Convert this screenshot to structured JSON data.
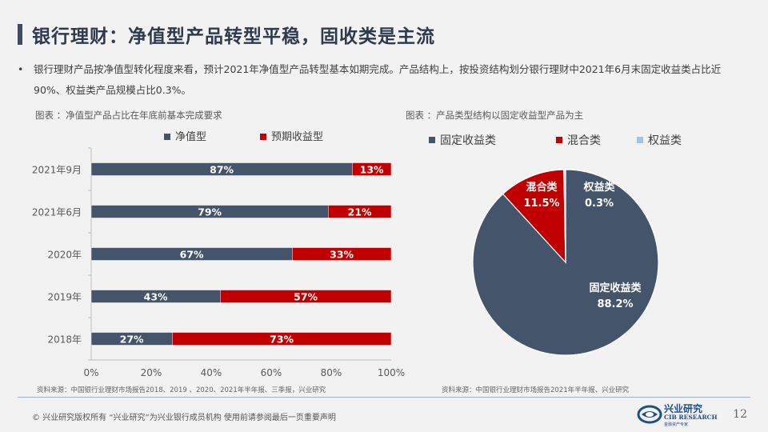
{
  "title": "银行理财：净值型产品转型平稳，固收类是主流",
  "bullet": "银行理财产品按净值型转化程度来看，预计2021年净值型产品转型基本如期完成。产品结构上，按投资结构划分银行理财中2021年6月末固定收益类占比近90%、权益类产品规模占比0.3%。",
  "left_caption": "图表 ：净值型产品占比在年底前基本完成要求",
  "right_caption": "图表 ：产品类型结构以固定收益型产品为主",
  "left_source": "资料来源：中国银行业理财市场报告2018、2019 、2020、2021年半年报、三季报，兴业研究",
  "right_source": "资料来源：中国银行业理财市场报告2021年半年报、兴业研究",
  "footer": "©  兴业研究版权所有  “兴业研究”为兴业银行成员机构  使用前请参阅最后一页重要声明",
  "page_number": "12",
  "logo": {
    "cn": "兴业研究",
    "en": "CIB RESEARCH",
    "sub": "金融资产专家"
  },
  "colors": {
    "navy": "#44546a",
    "red": "#c00000",
    "light_blue": "#9dc3e6",
    "accent": "#3f4b5e"
  },
  "chart_data": [
    {
      "type": "bar",
      "orientation": "horizontal",
      "stacked": "percent",
      "categories": [
        "2021年9月",
        "2021年6月",
        "2020年",
        "2019年",
        "2018年"
      ],
      "series": [
        {
          "name": "净值型",
          "values": [
            87,
            79,
            67,
            43,
            27
          ],
          "labels": [
            "87%",
            "79%",
            "67%",
            "43%",
            "27%"
          ]
        },
        {
          "name": "预期收益型",
          "values": [
            13,
            21,
            33,
            57,
            73
          ],
          "labels": [
            "13%",
            "21%",
            "33%",
            "57%",
            "73%"
          ]
        }
      ],
      "xlim": [
        0,
        100
      ],
      "xticks": [
        "0%",
        "20%",
        "40%",
        "60%",
        "80%",
        "100%"
      ],
      "legend": "top"
    },
    {
      "type": "pie",
      "categories": [
        "固定收益类",
        "混合类",
        "权益类"
      ],
      "values": [
        88.2,
        11.5,
        0.3
      ],
      "labels": [
        "88.2%",
        "11.5%",
        "0.3%"
      ],
      "legend": "top"
    }
  ]
}
